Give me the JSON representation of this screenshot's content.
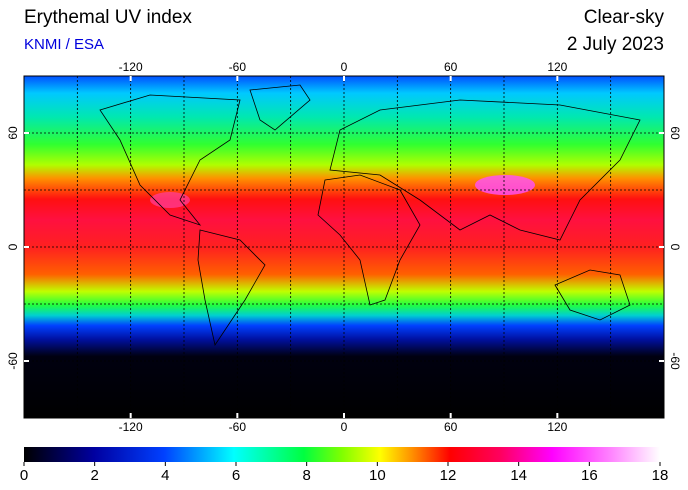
{
  "header": {
    "title": "Erythemal UV index",
    "subtitle": "KNMI / ESA",
    "condition": "Clear-sky",
    "date": "2 July 2023"
  },
  "map": {
    "lonlim": [
      -180,
      180
    ],
    "latlim": [
      -90,
      90
    ],
    "lonticks": [
      -120,
      -60,
      0,
      60,
      120
    ],
    "latticks": [
      -60,
      0,
      60
    ]
  },
  "colorbar": {
    "lim": [
      0,
      18
    ],
    "ticks": [
      0,
      2,
      4,
      6,
      8,
      10,
      12,
      14,
      16,
      18
    ]
  }
}
